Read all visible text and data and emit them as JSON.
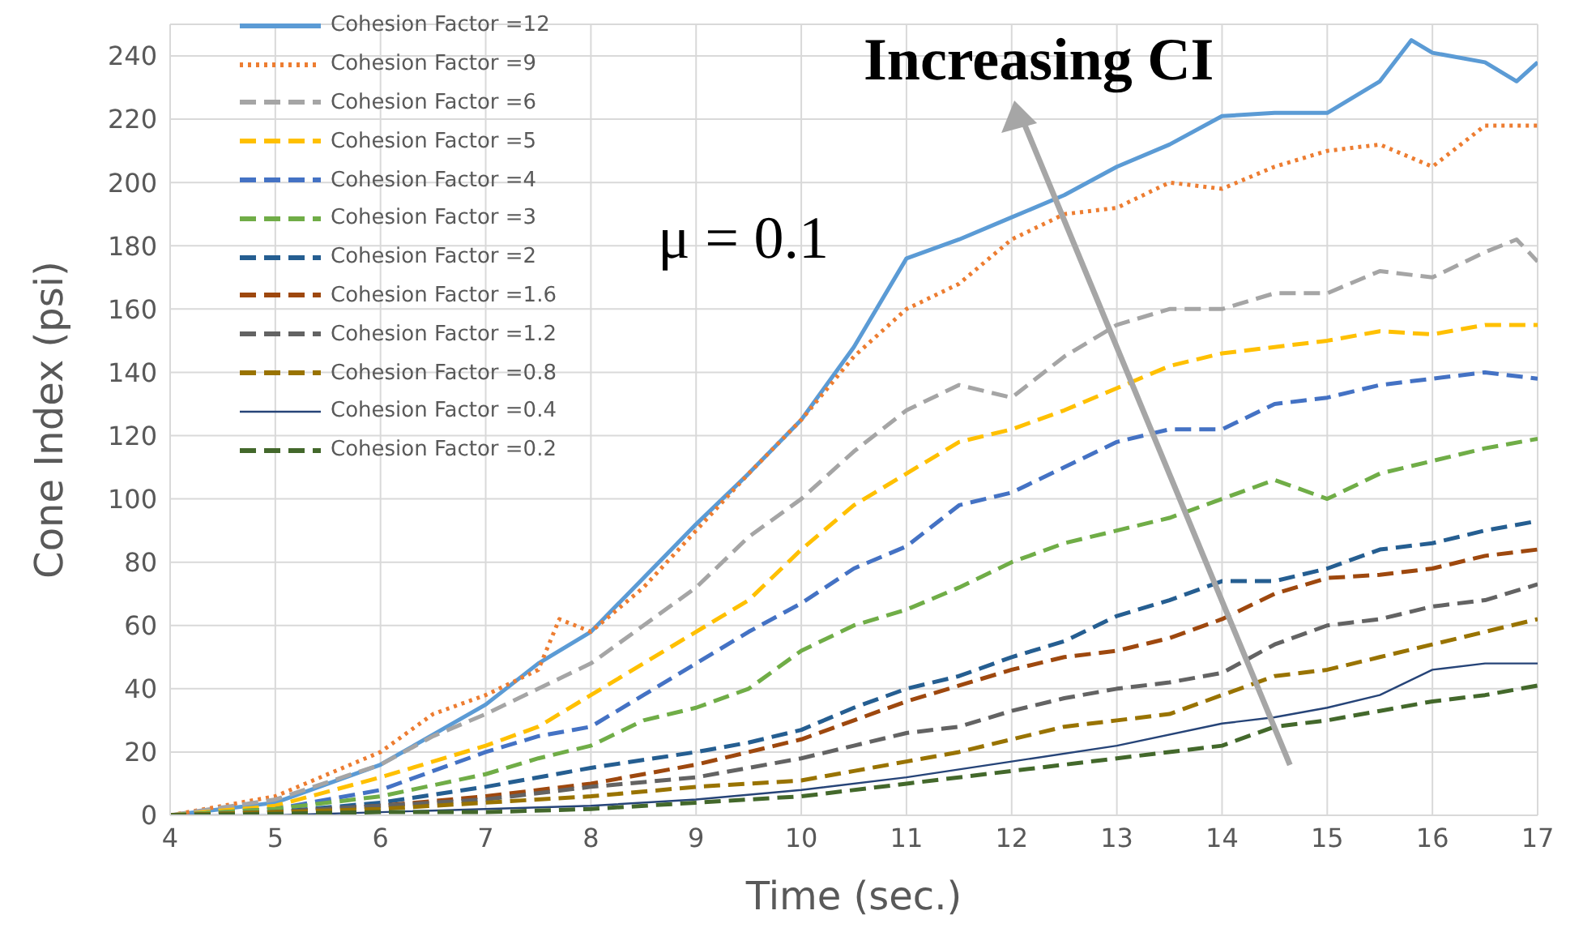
{
  "chart_data": {
    "type": "line",
    "xlabel": "Time (sec.)",
    "ylabel": "Cone Index (psi)",
    "xlim": [
      4,
      17
    ],
    "xticks": [
      4,
      5,
      6,
      7,
      8,
      9,
      10,
      11,
      12,
      13,
      14,
      15,
      16,
      17
    ],
    "ylim": [
      0,
      250
    ],
    "yticks": [
      0,
      20,
      40,
      60,
      80,
      100,
      120,
      140,
      160,
      180,
      200,
      220,
      240
    ],
    "grid": true,
    "legend": "top left",
    "marker": "none",
    "annotations": [
      "Increasing CI",
      "μ = 0.1"
    ],
    "series": [
      {
        "name": "Cohesion Factor =12",
        "color": "#5b9bd5",
        "line_style": "solid",
        "x": [
          4,
          5,
          6,
          7,
          7.5,
          8,
          8.5,
          9,
          9.5,
          10,
          10.5,
          11,
          11.5,
          12,
          12.5,
          13,
          13.5,
          14,
          14.5,
          15,
          15.5,
          15.8,
          16,
          16.5,
          16.8,
          17
        ],
        "values": [
          0,
          4,
          16,
          35,
          48,
          58,
          75,
          92,
          108,
          125,
          148,
          176,
          182,
          189,
          196,
          205,
          212,
          221,
          222,
          222,
          232,
          245,
          241,
          238,
          232,
          238
        ]
      },
      {
        "name": "Cohesion Factor =9",
        "color": "#ed7d31",
        "line_style": "dotted",
        "x": [
          4,
          5,
          6,
          6.5,
          7,
          7.5,
          7.7,
          8,
          8.5,
          9,
          9.5,
          10,
          10.5,
          11,
          11.5,
          12,
          12.5,
          13,
          13.5,
          14,
          14.5,
          15,
          15.5,
          16,
          16.5,
          17
        ],
        "values": [
          0,
          6,
          20,
          32,
          38,
          46,
          62,
          58,
          72,
          90,
          108,
          125,
          145,
          160,
          168,
          182,
          190,
          192,
          200,
          198,
          205,
          210,
          212,
          205,
          218,
          218
        ]
      },
      {
        "name": "Cohesion Factor =6",
        "color": "#a5a5a5",
        "line_style": "dashed",
        "x": [
          4,
          5,
          6,
          6.5,
          7,
          7.5,
          8,
          8.5,
          9,
          9.5,
          10,
          10.5,
          11,
          11.5,
          12,
          12.5,
          13,
          13.5,
          14,
          14.5,
          15,
          15.5,
          16,
          16.5,
          16.8,
          17
        ],
        "values": [
          0,
          5,
          16,
          25,
          32,
          40,
          48,
          60,
          72,
          88,
          100,
          115,
          128,
          136,
          132,
          145,
          155,
          160,
          160,
          165,
          165,
          172,
          170,
          178,
          182,
          175
        ]
      },
      {
        "name": "Cohesion Factor =5",
        "color": "#ffc000",
        "line_style": "dashed",
        "x": [
          4,
          5,
          6,
          7,
          7.5,
          8,
          8.5,
          9,
          9.5,
          10,
          10.5,
          11,
          11.5,
          12,
          12.5,
          13,
          13.5,
          14,
          14.5,
          15,
          15.5,
          16,
          16.5,
          17
        ],
        "values": [
          0,
          3,
          12,
          22,
          28,
          38,
          48,
          58,
          68,
          84,
          98,
          108,
          118,
          122,
          128,
          135,
          142,
          146,
          148,
          150,
          153,
          152,
          155,
          155
        ]
      },
      {
        "name": "Cohesion Factor =4",
        "color": "#4472c4",
        "line_style": "dashed",
        "x": [
          4,
          5,
          6,
          7,
          7.5,
          8,
          8.5,
          9,
          9.5,
          10,
          10.5,
          11,
          11.5,
          12,
          12.5,
          13,
          13.5,
          14,
          14.5,
          15,
          15.5,
          16,
          16.5,
          17
        ],
        "values": [
          0,
          2,
          8,
          20,
          25,
          28,
          38,
          48,
          58,
          67,
          78,
          85,
          98,
          102,
          110,
          118,
          122,
          122,
          130,
          132,
          136,
          138,
          140,
          138
        ]
      },
      {
        "name": "Cohesion Factor =3",
        "color": "#70ad47",
        "line_style": "dashed",
        "x": [
          4,
          5,
          6,
          7,
          7.5,
          8,
          8.5,
          9,
          9.5,
          10,
          10.5,
          11,
          11.5,
          12,
          12.5,
          13,
          13.5,
          14,
          14.5,
          15,
          15.5,
          16,
          16.5,
          17
        ],
        "values": [
          0,
          2,
          6,
          13,
          18,
          22,
          30,
          34,
          40,
          52,
          60,
          65,
          72,
          80,
          86,
          90,
          94,
          100,
          106,
          100,
          108,
          112,
          116,
          119
        ]
      },
      {
        "name": "Cohesion Factor =2",
        "color": "#255e91",
        "line_style": "dashed",
        "x": [
          4,
          5,
          6,
          7,
          8,
          9,
          9.5,
          10,
          10.5,
          11,
          11.5,
          12,
          12.5,
          13,
          13.5,
          14,
          14.5,
          15,
          15.5,
          16,
          16.5,
          17
        ],
        "values": [
          0,
          1,
          4,
          9,
          15,
          20,
          23,
          27,
          34,
          40,
          44,
          50,
          55,
          63,
          68,
          74,
          74,
          78,
          84,
          86,
          90,
          93
        ]
      },
      {
        "name": "Cohesion Factor =1.6",
        "color": "#9e480e",
        "line_style": "dashed",
        "x": [
          4,
          5,
          6,
          7,
          8,
          9,
          9.5,
          10,
          10.5,
          11,
          11.5,
          12,
          12.5,
          13,
          13.5,
          14,
          14.5,
          15,
          15.5,
          16,
          16.5,
          17
        ],
        "values": [
          0,
          1,
          3,
          6,
          10,
          16,
          20,
          24,
          30,
          36,
          41,
          46,
          50,
          52,
          56,
          62,
          70,
          75,
          76,
          78,
          82,
          84
        ]
      },
      {
        "name": "Cohesion Factor =1.2",
        "color": "#636363",
        "line_style": "dashed",
        "x": [
          4,
          5,
          6,
          7,
          8,
          9,
          10,
          10.5,
          11,
          11.5,
          12,
          12.5,
          13,
          13.5,
          14,
          14.5,
          15,
          15.5,
          16,
          16.5,
          17
        ],
        "values": [
          0,
          1,
          3,
          5,
          9,
          12,
          18,
          22,
          26,
          28,
          33,
          37,
          40,
          42,
          45,
          54,
          60,
          62,
          66,
          68,
          73
        ]
      },
      {
        "name": "Cohesion Factor =0.8",
        "color": "#997300",
        "line_style": "dashed",
        "x": [
          4,
          5,
          6,
          7,
          8,
          9,
          10,
          10.5,
          11,
          11.5,
          12,
          12.5,
          13,
          13.5,
          14,
          14.5,
          15,
          15.5,
          16,
          16.5,
          17
        ],
        "values": [
          0,
          1,
          2,
          4,
          6,
          9,
          11,
          14,
          17,
          20,
          24,
          28,
          30,
          32,
          38,
          44,
          46,
          50,
          54,
          58,
          62
        ]
      },
      {
        "name": "Cohesion Factor =0.4",
        "color": "#264478",
        "line_style": "solid",
        "x": [
          4,
          5,
          6,
          7,
          8,
          9,
          10,
          11,
          12,
          13,
          14,
          14.5,
          15,
          15.5,
          16,
          16.5,
          17
        ],
        "values": [
          0,
          0,
          1,
          2,
          3,
          5,
          8,
          12,
          17,
          22,
          29,
          31,
          34,
          38,
          46,
          48,
          48
        ]
      },
      {
        "name": "Cohesion Factor =0.2",
        "color": "#43682b",
        "line_style": "dashed",
        "x": [
          4,
          6,
          7,
          8,
          9,
          10,
          11,
          12,
          13,
          14,
          14.5,
          15,
          15.5,
          16,
          16.5,
          17
        ],
        "values": [
          0,
          1,
          1,
          2,
          4,
          6,
          10,
          14,
          18,
          22,
          28,
          30,
          33,
          36,
          38,
          41
        ]
      }
    ]
  }
}
